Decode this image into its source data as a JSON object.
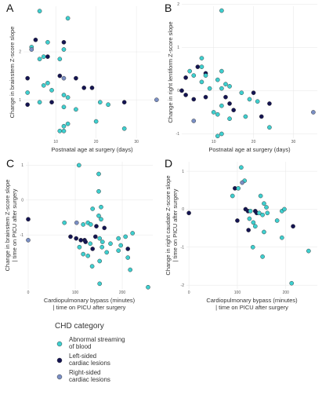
{
  "colors": {
    "abnormal": "#3ecfcf",
    "left": "#141452",
    "right": "#7a8fc4",
    "grid": "#e6e6e6",
    "outline": "#333333"
  },
  "legend": {
    "title": "CHD category",
    "items": [
      {
        "key": "abnormal",
        "lines": [
          "Abnormal streaming",
          " of blood"
        ]
      },
      {
        "key": "left",
        "lines": [
          "Left-sided",
          "cardiac lesions"
        ]
      },
      {
        "key": "right",
        "lines": [
          "Right-sided",
          "cardiac lesions"
        ]
      }
    ]
  },
  "chart_data": [
    {
      "panel": "A",
      "type": "scatter",
      "xlabel": [
        "Postnatal age at surgery (days)"
      ],
      "ylabel": [
        "Change in brainstem Z-score slope"
      ],
      "xlim": [
        2,
        36
      ],
      "ylim": [
        0.2,
        2.95
      ],
      "xticks": [
        10,
        20,
        30
      ],
      "yticks": [
        1,
        2
      ],
      "points": [
        {
          "x": 6,
          "y": 2.85,
          "g": "abnormal"
        },
        {
          "x": 13,
          "y": 2.7,
          "g": "abnormal"
        },
        {
          "x": 5,
          "y": 2.25,
          "g": "left"
        },
        {
          "x": 8,
          "y": 2.2,
          "g": "abnormal"
        },
        {
          "x": 12,
          "y": 2.2,
          "g": "left"
        },
        {
          "x": 4,
          "y": 2.1,
          "g": "abnormal"
        },
        {
          "x": 4,
          "y": 2.05,
          "g": "right"
        },
        {
          "x": 12,
          "y": 2.05,
          "g": "abnormal"
        },
        {
          "x": 7,
          "y": 1.9,
          "g": "abnormal"
        },
        {
          "x": 8,
          "y": 1.9,
          "g": "left"
        },
        {
          "x": 6,
          "y": 1.85,
          "g": "abnormal"
        },
        {
          "x": 11,
          "y": 1.85,
          "g": "abnormal"
        },
        {
          "x": 11,
          "y": 1.5,
          "g": "left"
        },
        {
          "x": 3,
          "y": 1.45,
          "g": "left"
        },
        {
          "x": 12,
          "y": 1.45,
          "g": "right"
        },
        {
          "x": 15,
          "y": 1.45,
          "g": "left"
        },
        {
          "x": 8,
          "y": 1.35,
          "g": "abnormal"
        },
        {
          "x": 7,
          "y": 1.3,
          "g": "abnormal"
        },
        {
          "x": 17,
          "y": 1.25,
          "g": "left"
        },
        {
          "x": 19,
          "y": 1.25,
          "g": "left"
        },
        {
          "x": 9,
          "y": 1.2,
          "g": "abnormal"
        },
        {
          "x": 3,
          "y": 1.15,
          "g": "abnormal"
        },
        {
          "x": 12,
          "y": 1.1,
          "g": "abnormal"
        },
        {
          "x": 13,
          "y": 1.05,
          "g": "abnormal"
        },
        {
          "x": 6,
          "y": 0.95,
          "g": "abnormal"
        },
        {
          "x": 9,
          "y": 0.95,
          "g": "left"
        },
        {
          "x": 21,
          "y": 0.95,
          "g": "abnormal"
        },
        {
          "x": 27,
          "y": 0.95,
          "g": "left"
        },
        {
          "x": 3,
          "y": 0.9,
          "g": "left"
        },
        {
          "x": 23,
          "y": 0.9,
          "g": "abnormal"
        },
        {
          "x": 12,
          "y": 0.85,
          "g": "abnormal"
        },
        {
          "x": 15,
          "y": 0.8,
          "g": "abnormal"
        },
        {
          "x": 35,
          "y": 1.0,
          "g": "right"
        },
        {
          "x": 20,
          "y": 0.55,
          "g": "abnormal"
        },
        {
          "x": 13,
          "y": 0.5,
          "g": "abnormal"
        },
        {
          "x": 12,
          "y": 0.45,
          "g": "abnormal"
        },
        {
          "x": 11,
          "y": 0.35,
          "g": "abnormal"
        },
        {
          "x": 12,
          "y": 0.35,
          "g": "abnormal"
        },
        {
          "x": 27,
          "y": 0.4,
          "g": "abnormal"
        }
      ]
    },
    {
      "panel": "B",
      "type": "scatter",
      "xlabel": [
        "Postnatal age at surgery (days)"
      ],
      "ylabel": [
        "Change in right lentiform Z-score slope"
      ],
      "xlim": [
        2,
        36
      ],
      "ylim": [
        -1.1,
        1.95
      ],
      "xticks": [
        10,
        20,
        30
      ],
      "yticks": [
        -1,
        0,
        1,
        2
      ],
      "points": [
        {
          "x": 12,
          "y": 1.85,
          "g": "abnormal"
        },
        {
          "x": 7,
          "y": 0.75,
          "g": "abnormal"
        },
        {
          "x": 6,
          "y": 0.55,
          "g": "left"
        },
        {
          "x": 7,
          "y": 0.55,
          "g": "abnormal"
        },
        {
          "x": 4,
          "y": 0.45,
          "g": "abnormal"
        },
        {
          "x": 12,
          "y": 0.45,
          "g": "abnormal"
        },
        {
          "x": 8,
          "y": 0.4,
          "g": "left"
        },
        {
          "x": 8,
          "y": 0.35,
          "g": "abnormal"
        },
        {
          "x": 5,
          "y": 0.35,
          "g": "abnormal"
        },
        {
          "x": 3,
          "y": 0.3,
          "g": "left"
        },
        {
          "x": 11,
          "y": 0.25,
          "g": "abnormal"
        },
        {
          "x": 7,
          "y": 0.2,
          "g": "abnormal"
        },
        {
          "x": 13,
          "y": 0.15,
          "g": "abnormal"
        },
        {
          "x": 14,
          "y": 0.1,
          "g": "abnormal"
        },
        {
          "x": 9,
          "y": 0.05,
          "g": "abnormal"
        },
        {
          "x": 12,
          "y": 0.05,
          "g": "abnormal"
        },
        {
          "x": 2,
          "y": 0.0,
          "g": "left"
        },
        {
          "x": 20,
          "y": -0.05,
          "g": "left"
        },
        {
          "x": 17,
          "y": -0.05,
          "g": "abnormal"
        },
        {
          "x": 5,
          "y": -0.2,
          "g": "left"
        },
        {
          "x": 8,
          "y": -0.15,
          "g": "left"
        },
        {
          "x": 13,
          "y": -0.15,
          "g": "left"
        },
        {
          "x": 3,
          "y": -0.1,
          "g": "left"
        },
        {
          "x": 19,
          "y": -0.2,
          "g": "abnormal"
        },
        {
          "x": 21,
          "y": -0.25,
          "g": "abnormal"
        },
        {
          "x": 24,
          "y": -0.3,
          "g": "left"
        },
        {
          "x": 14,
          "y": -0.3,
          "g": "left"
        },
        {
          "x": 12,
          "y": -0.35,
          "g": "abnormal"
        },
        {
          "x": 15,
          "y": -0.45,
          "g": "left"
        },
        {
          "x": 11,
          "y": -0.55,
          "g": "abnormal"
        },
        {
          "x": 10,
          "y": -0.5,
          "g": "abnormal"
        },
        {
          "x": 35,
          "y": -0.5,
          "g": "right"
        },
        {
          "x": 18,
          "y": -0.6,
          "g": "abnormal"
        },
        {
          "x": 22,
          "y": -0.6,
          "g": "left"
        },
        {
          "x": 14,
          "y": -0.65,
          "g": "abnormal"
        },
        {
          "x": 5,
          "y": -0.7,
          "g": "right"
        },
        {
          "x": 24,
          "y": -0.85,
          "g": "abnormal"
        },
        {
          "x": 12,
          "y": -1.0,
          "g": "abnormal"
        },
        {
          "x": 11,
          "y": -1.05,
          "g": "abnormal"
        }
      ]
    },
    {
      "panel": "C",
      "type": "scatter",
      "xlabel": [
        "Cardiopulmonary bypass (minutes)",
        "| time on PICU after surgery"
      ],
      "ylabel": [
        "Change in brainstem Z-score slope",
        "| time on PICU after surgery"
      ],
      "xlim": [
        -5,
        265
      ],
      "ylim": [
        -2.55,
        1.1
      ],
      "xticks": [
        0,
        100,
        200
      ],
      "yticks": [
        -1,
        0,
        1
      ],
      "points": [
        {
          "x": 108,
          "y": 1.0,
          "g": "abnormal"
        },
        {
          "x": 150,
          "y": 0.75,
          "g": "abnormal"
        },
        {
          "x": 150,
          "y": 0.25,
          "g": "abnormal"
        },
        {
          "x": 0,
          "y": -0.55,
          "g": "left"
        },
        {
          "x": 155,
          "y": -0.2,
          "g": "abnormal"
        },
        {
          "x": 137,
          "y": -0.25,
          "g": "abnormal"
        },
        {
          "x": 150,
          "y": -0.45,
          "g": "abnormal"
        },
        {
          "x": 155,
          "y": -0.55,
          "g": "abnormal"
        },
        {
          "x": 77,
          "y": -0.65,
          "g": "abnormal"
        },
        {
          "x": 103,
          "y": -0.65,
          "g": "right"
        },
        {
          "x": 127,
          "y": -0.65,
          "g": "abnormal"
        },
        {
          "x": 117,
          "y": -0.7,
          "g": "abnormal"
        },
        {
          "x": 133,
          "y": -0.7,
          "g": "abnormal"
        },
        {
          "x": 145,
          "y": -0.75,
          "g": "left"
        },
        {
          "x": 162,
          "y": -0.8,
          "g": "left"
        },
        {
          "x": 222,
          "y": -0.95,
          "g": "abnormal"
        },
        {
          "x": 90,
          "y": -1.05,
          "g": "left"
        },
        {
          "x": 143,
          "y": -1.05,
          "g": "left"
        },
        {
          "x": 207,
          "y": -1.05,
          "g": "abnormal"
        },
        {
          "x": 102,
          "y": -1.1,
          "g": "left"
        },
        {
          "x": 152,
          "y": -1.1,
          "g": "abnormal"
        },
        {
          "x": 192,
          "y": -1.1,
          "g": "abnormal"
        },
        {
          "x": 0,
          "y": -1.15,
          "g": "right"
        },
        {
          "x": 112,
          "y": -1.15,
          "g": "left"
        },
        {
          "x": 120,
          "y": -1.15,
          "g": "left"
        },
        {
          "x": 122,
          "y": -1.2,
          "g": "left"
        },
        {
          "x": 158,
          "y": -1.2,
          "g": "abnormal"
        },
        {
          "x": 175,
          "y": -1.25,
          "g": "abnormal"
        },
        {
          "x": 132,
          "y": -1.25,
          "g": "abnormal"
        },
        {
          "x": 197,
          "y": -1.3,
          "g": "abnormal"
        },
        {
          "x": 109,
          "y": -1.35,
          "g": "abnormal"
        },
        {
          "x": 157,
          "y": -1.35,
          "g": "abnormal"
        },
        {
          "x": 212,
          "y": -1.4,
          "g": "left"
        },
        {
          "x": 137,
          "y": -1.4,
          "g": "left"
        },
        {
          "x": 192,
          "y": -1.45,
          "g": "abnormal"
        },
        {
          "x": 167,
          "y": -1.5,
          "g": "abnormal"
        },
        {
          "x": 117,
          "y": -1.55,
          "g": "abnormal"
        },
        {
          "x": 127,
          "y": -1.6,
          "g": "abnormal"
        },
        {
          "x": 212,
          "y": -1.65,
          "g": "abnormal"
        },
        {
          "x": 152,
          "y": -1.75,
          "g": "abnormal"
        },
        {
          "x": 136,
          "y": -1.9,
          "g": "abnormal"
        },
        {
          "x": 217,
          "y": -2.0,
          "g": "abnormal"
        },
        {
          "x": 152,
          "y": -2.4,
          "g": "abnormal"
        },
        {
          "x": 255,
          "y": -2.5,
          "g": "abnormal"
        }
      ]
    },
    {
      "panel": "D",
      "type": "scatter",
      "xlabel": [
        "Cardiopulmonary bypass (minutes)",
        "| time on PICU after surgery"
      ],
      "ylabel": [
        "Change in right caudate Z-score slope",
        "| time on PICU after surgery"
      ],
      "xlim": [
        -5,
        265
      ],
      "ylim": [
        -2.1,
        1.25
      ],
      "xticks": [
        0,
        100,
        200
      ],
      "yticks": [
        -2,
        -1,
        0,
        1
      ],
      "points": [
        {
          "x": 108,
          "y": 1.1,
          "g": "abnormal"
        },
        {
          "x": 115,
          "y": 0.75,
          "g": "abnormal"
        },
        {
          "x": 95,
          "y": 0.55,
          "g": "left"
        },
        {
          "x": 102,
          "y": 0.55,
          "g": "abnormal"
        },
        {
          "x": 90,
          "y": 0.35,
          "g": "abnormal"
        },
        {
          "x": 110,
          "y": 0.7,
          "g": "right"
        },
        {
          "x": 148,
          "y": 0.35,
          "g": "abnormal"
        },
        {
          "x": 155,
          "y": 0.15,
          "g": "abnormal"
        },
        {
          "x": 160,
          "y": 0.05,
          "g": "abnormal"
        },
        {
          "x": 0,
          "y": -0.1,
          "g": "left"
        },
        {
          "x": 117,
          "y": 0.0,
          "g": "left"
        },
        {
          "x": 122,
          "y": -0.05,
          "g": "left"
        },
        {
          "x": 127,
          "y": -0.05,
          "g": "abnormal"
        },
        {
          "x": 137,
          "y": -0.05,
          "g": "left"
        },
        {
          "x": 140,
          "y": -0.1,
          "g": "left"
        },
        {
          "x": 145,
          "y": -0.1,
          "g": "abnormal"
        },
        {
          "x": 152,
          "y": -0.15,
          "g": "abnormal"
        },
        {
          "x": 162,
          "y": -0.1,
          "g": "abnormal"
        },
        {
          "x": 192,
          "y": -0.05,
          "g": "abnormal"
        },
        {
          "x": 197,
          "y": 0.0,
          "g": "abnormal"
        },
        {
          "x": 125,
          "y": -0.25,
          "g": "abnormal"
        },
        {
          "x": 100,
          "y": -0.3,
          "g": "left"
        },
        {
          "x": 133,
          "y": -0.35,
          "g": "abnormal"
        },
        {
          "x": 182,
          "y": -0.3,
          "g": "abnormal"
        },
        {
          "x": 137,
          "y": -0.45,
          "g": "abnormal"
        },
        {
          "x": 215,
          "y": -0.45,
          "g": "left"
        },
        {
          "x": 123,
          "y": -0.55,
          "g": "left"
        },
        {
          "x": 155,
          "y": -0.6,
          "g": "abnormal"
        },
        {
          "x": 192,
          "y": -0.75,
          "g": "abnormal"
        },
        {
          "x": 132,
          "y": -1.0,
          "g": "abnormal"
        },
        {
          "x": 247,
          "y": -1.1,
          "g": "abnormal"
        },
        {
          "x": 152,
          "y": -1.25,
          "g": "abnormal"
        },
        {
          "x": 212,
          "y": -1.95,
          "g": "abnormal"
        }
      ]
    }
  ]
}
